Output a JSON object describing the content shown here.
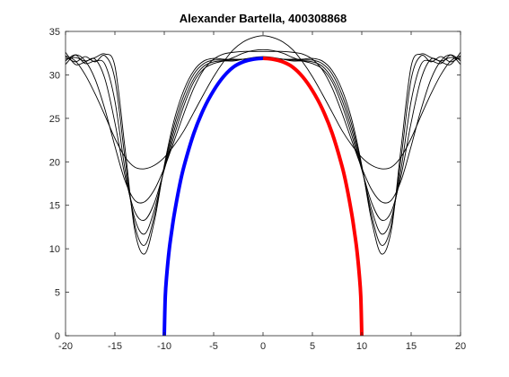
{
  "chart_data": {
    "type": "line",
    "title": "Alexander Bartella, 400308868",
    "xlabel": "",
    "ylabel": "",
    "xlim": [
      -20,
      20
    ],
    "ylim": [
      0,
      35
    ],
    "x_ticks": [
      -20,
      -15,
      -10,
      -5,
      0,
      5,
      10,
      15,
      20
    ],
    "y_ticks": [
      0,
      5,
      10,
      15,
      20,
      25,
      30,
      35
    ],
    "grid": false,
    "box": true,
    "colors": {
      "approximations": "#000000",
      "left_branch": "#0000ff",
      "right_branch": "#ff0000",
      "axes": "#262626"
    },
    "approximation_series": [
      {
        "x": [
          -20,
          -19,
          -18,
          -17,
          -16,
          -15,
          -14,
          -13,
          -12,
          -11,
          -10,
          -9,
          -8,
          -7,
          -6,
          -5,
          -4,
          -3,
          -2,
          -1,
          0,
          1,
          2,
          3,
          4,
          5,
          6,
          7,
          8,
          9,
          10,
          11,
          12,
          13,
          14,
          15,
          16,
          17,
          18,
          19,
          20
        ],
        "y": [
          32.2,
          31.6,
          30.0,
          27.8,
          25.3,
          22.7,
          20.6,
          19.4,
          19.2,
          19.6,
          20.5,
          21.9,
          23.6,
          25.7,
          27.8,
          29.8,
          31.5,
          32.9,
          33.8,
          34.3,
          34.5,
          34.3,
          33.8,
          32.9,
          31.5,
          29.8,
          27.8,
          25.7,
          23.6,
          21.9,
          20.5,
          19.6,
          19.2,
          19.4,
          20.6,
          22.7,
          25.3,
          27.8,
          30.0,
          31.6,
          32.2
        ]
      },
      {
        "x": [
          -20,
          -19,
          -18,
          -17,
          -16,
          -15,
          -14,
          -13,
          -12,
          -11,
          -10,
          -9,
          -8,
          -7,
          -6,
          -5,
          -4,
          -3,
          -2,
          -1,
          0,
          1,
          2,
          3,
          4,
          5,
          6,
          7,
          8,
          9,
          10,
          11,
          12,
          13,
          14,
          15,
          16,
          17,
          18,
          19,
          20
        ],
        "y": [
          31.2,
          32.3,
          31.6,
          29.5,
          26.0,
          21.8,
          17.9,
          15.6,
          15.4,
          16.8,
          19.3,
          22.4,
          25.6,
          28.5,
          30.6,
          31.8,
          32.4,
          32.6,
          32.7,
          32.7,
          32.7,
          32.7,
          32.7,
          32.6,
          32.4,
          31.8,
          30.6,
          28.5,
          25.6,
          22.4,
          19.3,
          16.8,
          15.4,
          15.6,
          17.9,
          21.8,
          26.0,
          29.5,
          31.6,
          32.3,
          31.2
        ]
      },
      {
        "x": [
          -20,
          -19,
          -18,
          -17,
          -16,
          -15,
          -14,
          -13,
          -12,
          -11,
          -10,
          -9,
          -8,
          -7,
          -6,
          -5,
          -4,
          -3,
          -2,
          -1,
          0,
          1,
          2,
          3,
          4,
          5,
          6,
          7,
          8,
          9,
          10,
          11,
          12,
          13,
          14,
          15,
          16,
          17,
          18,
          19,
          20
        ],
        "y": [
          32.6,
          31.2,
          31.5,
          31.8,
          29.5,
          24.5,
          18.5,
          14.3,
          13.3,
          15.3,
          19.1,
          23.0,
          26.5,
          29.2,
          30.7,
          31.3,
          31.6,
          32.0,
          32.5,
          32.8,
          32.9,
          32.8,
          32.5,
          32.0,
          31.6,
          31.3,
          30.7,
          29.2,
          26.5,
          23.0,
          19.1,
          15.3,
          13.3,
          14.3,
          18.5,
          24.5,
          29.5,
          31.8,
          31.5,
          31.2,
          32.6
        ]
      },
      {
        "x": [
          -20,
          -19,
          -18,
          -17,
          -16,
          -15,
          -14,
          -13,
          -12,
          -11,
          -10,
          -9,
          -8,
          -7,
          -6,
          -5,
          -4,
          -3,
          -2,
          -1,
          0,
          1,
          2,
          3,
          4,
          5,
          6,
          7,
          8,
          9,
          10,
          11,
          12,
          13,
          14,
          15,
          16,
          17,
          18,
          19,
          20
        ],
        "y": [
          31.6,
          32.3,
          31.3,
          31.6,
          31.2,
          27.0,
          19.3,
          13.5,
          11.7,
          14.5,
          19.2,
          23.6,
          27.1,
          29.6,
          31.0,
          31.5,
          31.6,
          31.6,
          31.8,
          32.0,
          32.1,
          32.0,
          31.8,
          31.6,
          31.6,
          31.5,
          31.0,
          29.6,
          27.1,
          23.6,
          19.2,
          14.5,
          11.7,
          13.5,
          19.3,
          27.0,
          31.2,
          31.6,
          31.3,
          32.3,
          31.6
        ]
      },
      {
        "x": [
          -20,
          -19,
          -18,
          -17,
          -16,
          -15,
          -14,
          -13,
          -12,
          -11,
          -10,
          -9,
          -8,
          -7,
          -6,
          -5,
          -4,
          -3,
          -2,
          -1,
          0,
          1,
          2,
          3,
          4,
          5,
          6,
          7,
          8,
          9,
          10,
          11,
          12,
          13,
          14,
          15,
          16,
          17,
          18,
          19,
          20
        ],
        "y": [
          32.1,
          31.5,
          32.1,
          31.5,
          32.2,
          29.5,
          20.6,
          12.8,
          10.4,
          13.8,
          19.4,
          24.2,
          27.7,
          30.1,
          31.3,
          31.7,
          31.7,
          31.7,
          31.8,
          31.9,
          32.0,
          31.9,
          31.8,
          31.7,
          31.7,
          31.7,
          31.3,
          30.1,
          27.7,
          24.2,
          19.4,
          13.8,
          10.4,
          12.8,
          20.6,
          29.5,
          32.2,
          31.5,
          32.1,
          31.5,
          32.1
        ]
      },
      {
        "x": [
          -20,
          -19,
          -18,
          -17,
          -16,
          -15,
          -14,
          -13,
          -12,
          -11,
          -10,
          -9,
          -8,
          -7,
          -6,
          -5,
          -4,
          -3,
          -2,
          -1,
          0,
          1,
          2,
          3,
          4,
          5,
          6,
          7,
          8,
          9,
          10,
          11,
          12,
          13,
          14,
          15,
          16,
          17,
          18,
          19,
          20
        ],
        "y": [
          31.8,
          32.0,
          31.6,
          32.0,
          32.4,
          31.0,
          21.8,
          12.2,
          9.4,
          13.2,
          19.6,
          24.8,
          28.3,
          30.5,
          31.6,
          31.9,
          31.8,
          31.8,
          31.8,
          31.9,
          31.9,
          31.9,
          31.8,
          31.8,
          31.8,
          31.9,
          31.6,
          30.5,
          28.3,
          24.8,
          19.6,
          13.2,
          9.4,
          12.2,
          21.8,
          31.0,
          32.4,
          32.0,
          31.6,
          32.0,
          31.8
        ]
      }
    ],
    "left_branch": {
      "name": "",
      "x": [
        -10,
        -9.9,
        -9.75,
        -9.5,
        -9.25,
        -9,
        -8.5,
        -8,
        -7,
        -6,
        -5,
        -4,
        -3,
        -2,
        -1,
        0
      ],
      "y": [
        0,
        4.5,
        7.0,
        9.9,
        12.0,
        13.9,
        17.0,
        19.5,
        23.3,
        26.1,
        28.2,
        29.8,
        30.9,
        31.5,
        31.8,
        31.9
      ]
    },
    "right_branch": {
      "name": "",
      "x": [
        0,
        1,
        2,
        3,
        4,
        5,
        6,
        7,
        8,
        8.5,
        9,
        9.25,
        9.5,
        9.75,
        9.9,
        10
      ],
      "y": [
        31.9,
        31.8,
        31.5,
        30.9,
        29.8,
        28.2,
        26.1,
        23.3,
        19.5,
        17.0,
        13.9,
        12.0,
        9.9,
        7.0,
        4.5,
        0
      ]
    }
  }
}
